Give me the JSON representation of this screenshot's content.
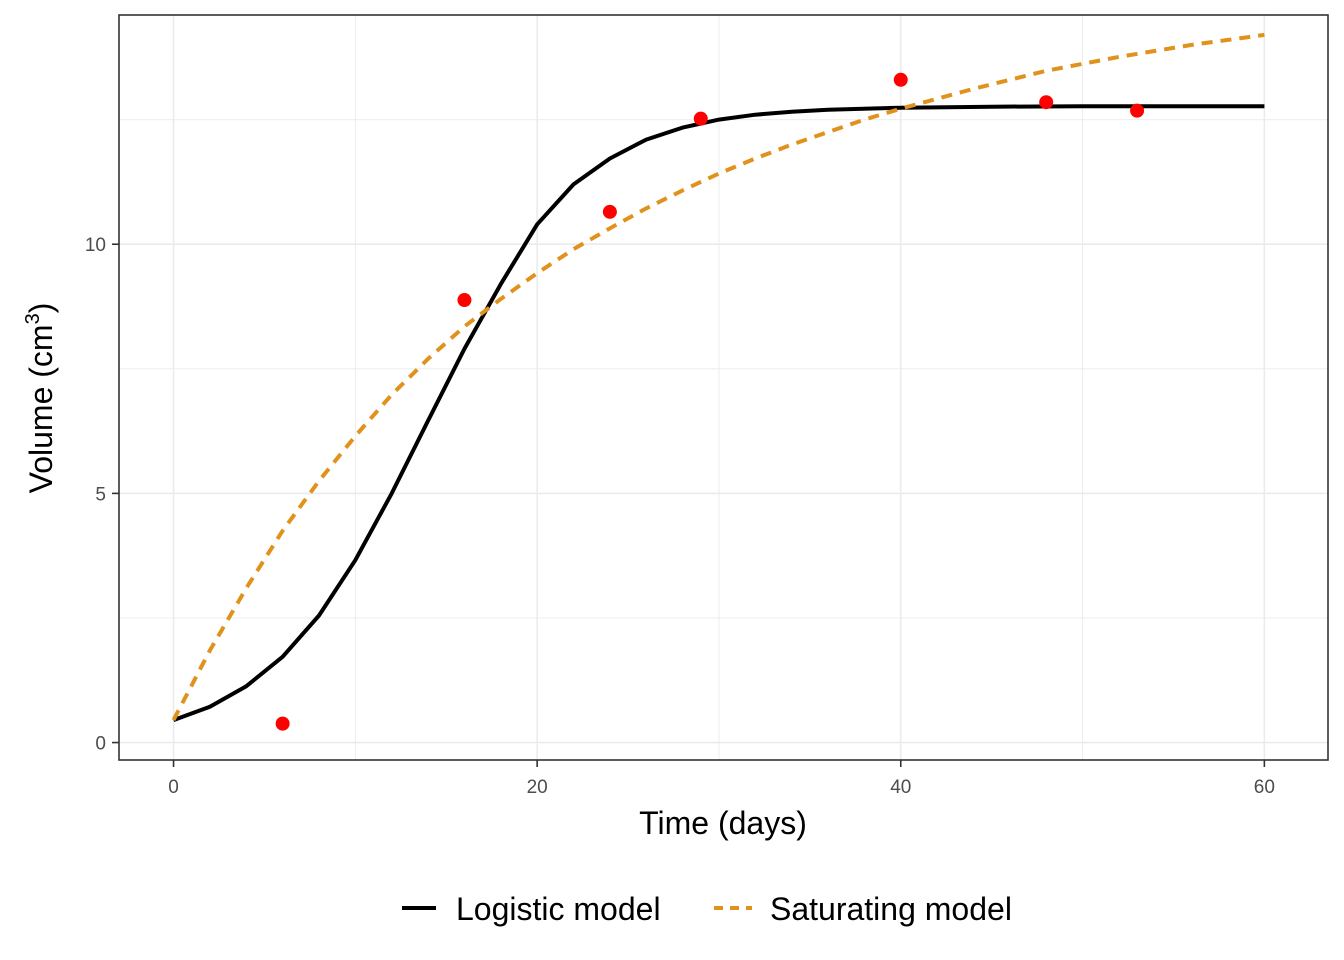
{
  "chart_data": {
    "type": "line",
    "xlabel": "Time (days)",
    "ylabel_main": "Volume (cm",
    "ylabel_sup": "3",
    "ylabel_close": ")",
    "xlim": [
      -3,
      63.5
    ],
    "ylim": [
      -0.35,
      14.6
    ],
    "x_ticks": [
      0,
      20,
      40,
      60
    ],
    "x_tick_labels": [
      "0",
      "20",
      "40",
      "60"
    ],
    "y_ticks": [
      0,
      5,
      10
    ],
    "y_tick_labels": [
      "0",
      "5",
      "10"
    ],
    "grid": true,
    "legend_position": "bottom",
    "observed_points": {
      "color": "#ff0000",
      "x": [
        6,
        16,
        24,
        29,
        40,
        48,
        53
      ],
      "y": [
        0.38,
        8.88,
        10.65,
        12.52,
        13.3,
        12.85,
        12.68
      ]
    },
    "series": [
      {
        "name": "Logistic model",
        "color": "#000000",
        "style": "solid",
        "x": [
          0,
          2,
          4,
          6,
          8,
          10,
          12,
          14,
          16,
          18,
          20,
          22,
          24,
          26,
          28,
          30,
          32,
          34,
          36,
          40,
          45,
          50,
          55,
          60
        ],
        "y": [
          0.45,
          0.72,
          1.13,
          1.72,
          2.55,
          3.66,
          5.0,
          6.46,
          7.9,
          9.2,
          10.4,
          11.2,
          11.72,
          12.1,
          12.34,
          12.5,
          12.6,
          12.66,
          12.7,
          12.74,
          12.76,
          12.77,
          12.77,
          12.77
        ]
      },
      {
        "name": "Saturating model",
        "color": "#e0921c",
        "style": "dashed",
        "x": [
          0,
          2,
          4,
          6,
          8,
          10,
          12,
          14,
          16,
          18,
          20,
          22,
          24,
          26,
          28,
          30,
          32,
          34,
          36,
          38,
          40,
          42,
          44,
          46,
          48,
          50,
          52,
          54,
          56,
          58,
          60
        ],
        "y": [
          0.45,
          1.85,
          3.1,
          4.25,
          5.25,
          6.15,
          6.98,
          7.7,
          8.35,
          8.9,
          9.42,
          9.9,
          10.32,
          10.72,
          11.08,
          11.42,
          11.72,
          12.0,
          12.25,
          12.5,
          12.72,
          12.92,
          13.12,
          13.3,
          13.48,
          13.62,
          13.76,
          13.88,
          14.0,
          14.1,
          14.2
        ]
      }
    ]
  }
}
